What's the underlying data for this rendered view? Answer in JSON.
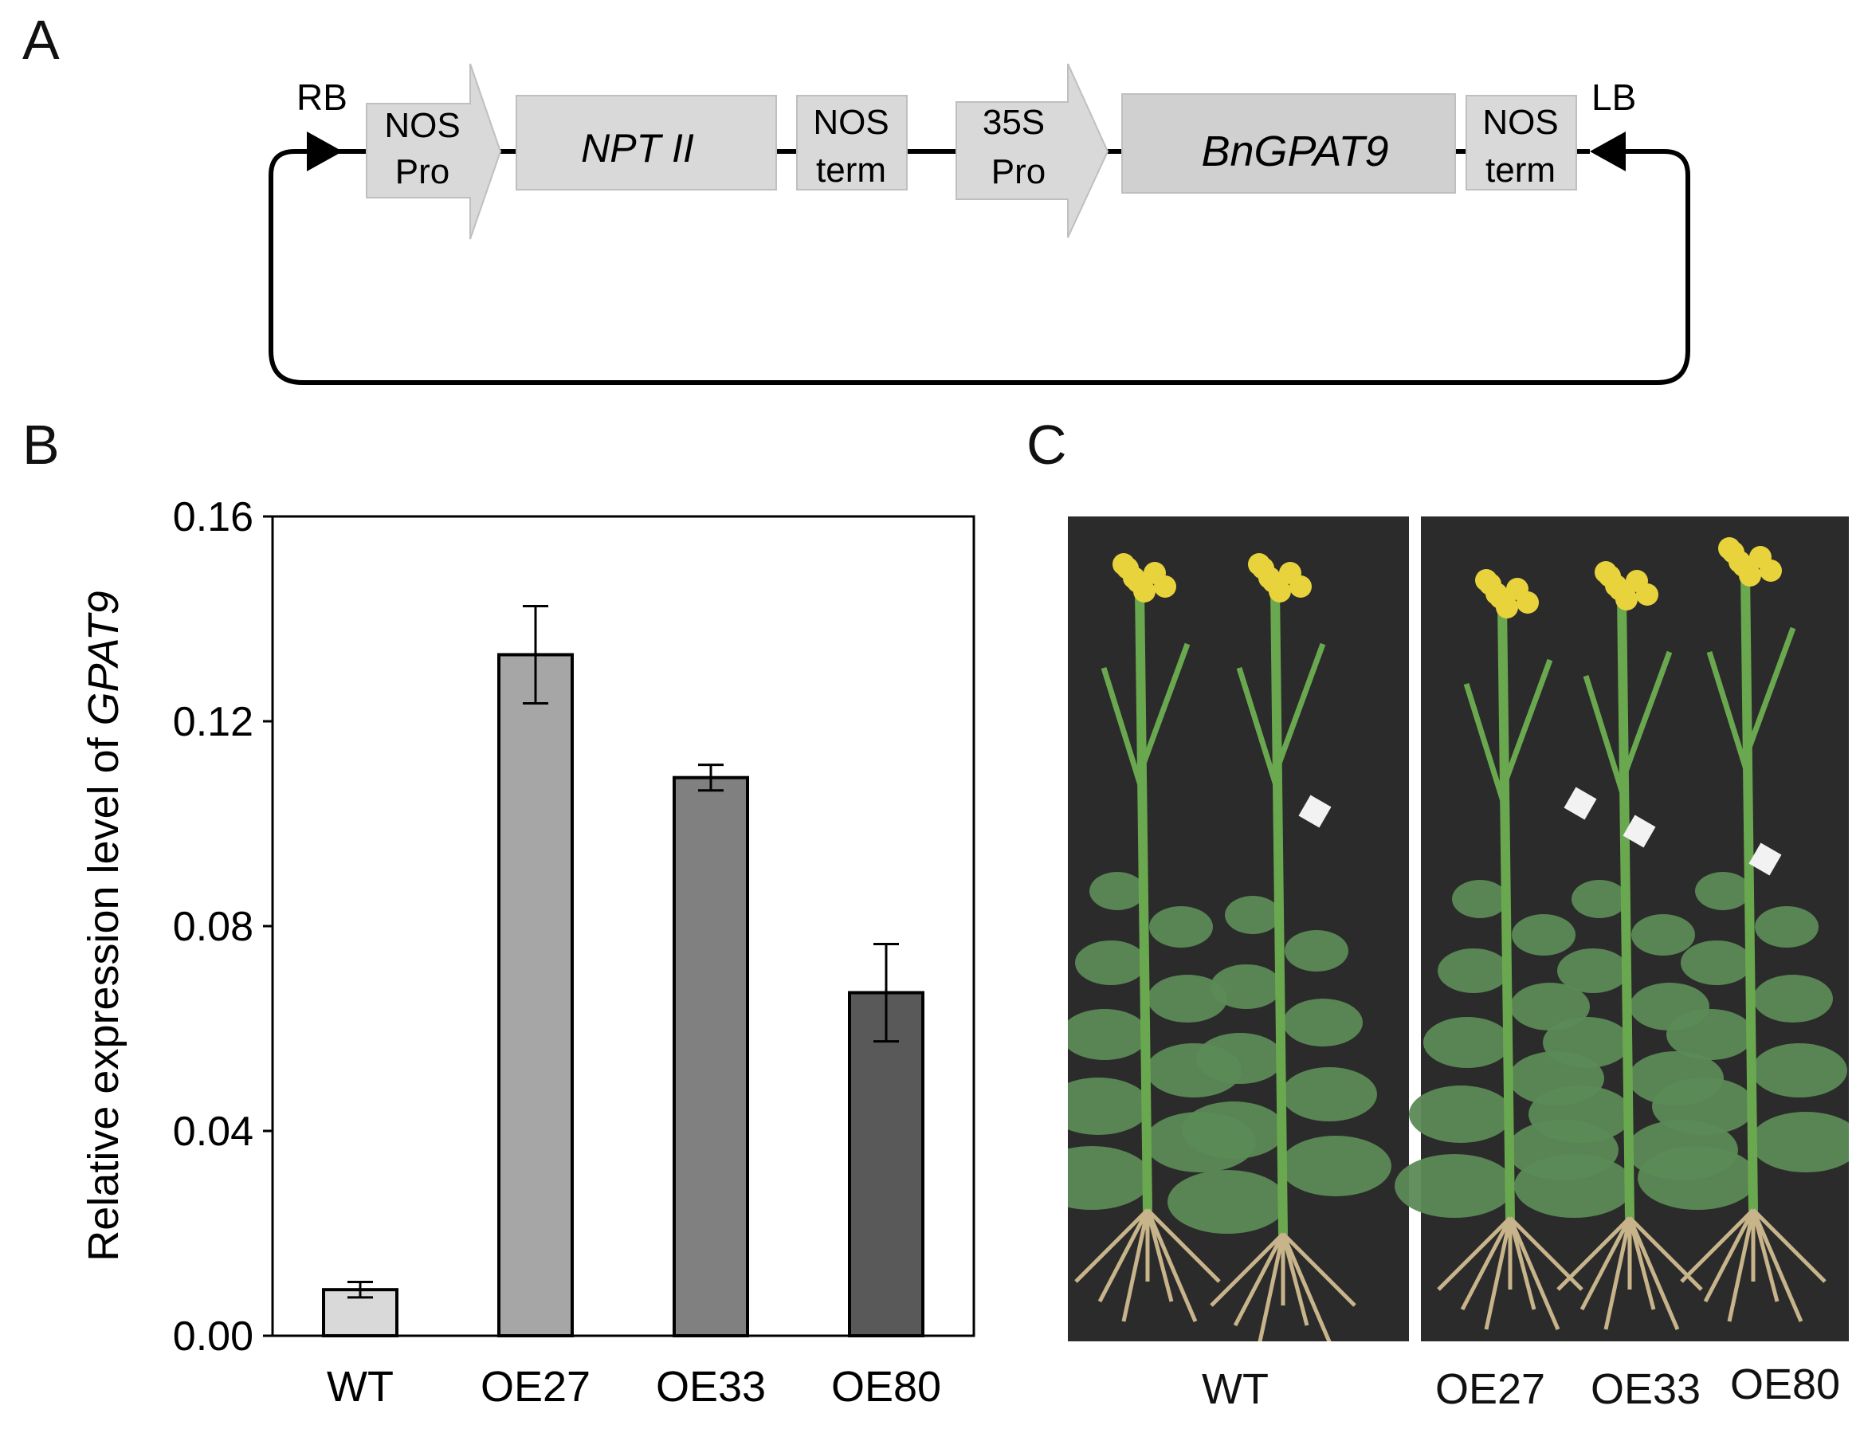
{
  "panels": {
    "a": "A",
    "b": "B",
    "c": "C"
  },
  "construct": {
    "rb_label": "RB",
    "lb_label": "LB",
    "elements": [
      {
        "id": "nos-pro",
        "shape": "arrow",
        "line1": "NOS",
        "line2": "Pro"
      },
      {
        "id": "npt2",
        "shape": "box",
        "line1": "NPT II",
        "italic": true
      },
      {
        "id": "nos-term-1",
        "shape": "box",
        "line1": "NOS",
        "line2": "term"
      },
      {
        "id": "35s-pro",
        "shape": "arrow",
        "line1": "35S",
        "line2": "Pro"
      },
      {
        "id": "bngpat9",
        "shape": "box",
        "line1": "BnGPAT9",
        "italic": true
      },
      {
        "id": "nos-term-2",
        "shape": "box",
        "line1": "NOS",
        "line2": "term"
      }
    ]
  },
  "chart_data": {
    "type": "bar",
    "categories": [
      "WT",
      "OE27",
      "OE33",
      "OE80"
    ],
    "values": [
      0.009,
      0.133,
      0.109,
      0.067
    ],
    "errors": [
      0.0015,
      0.0095,
      0.0025,
      0.0095
    ],
    "ylabel_prefix": "Relative expression level of ",
    "ylabel_italic": "GPAT9",
    "ylim": [
      0,
      0.16
    ],
    "yticks": [
      "0.00",
      "0.04",
      "0.08",
      "0.12",
      "0.16"
    ],
    "bar_colors": [
      "#d9d9d9",
      "#a6a6a6",
      "#808080",
      "#595959"
    ],
    "grid": false
  },
  "photo": {
    "labels": [
      "WT",
      "OE27",
      "OE33",
      "OE80"
    ],
    "background": "#2b2b2b",
    "stem_color": "#6aa84f",
    "leaf_color": "#5b8a55",
    "flower_color": "#e8d33c",
    "root_color": "#c8b48a"
  }
}
